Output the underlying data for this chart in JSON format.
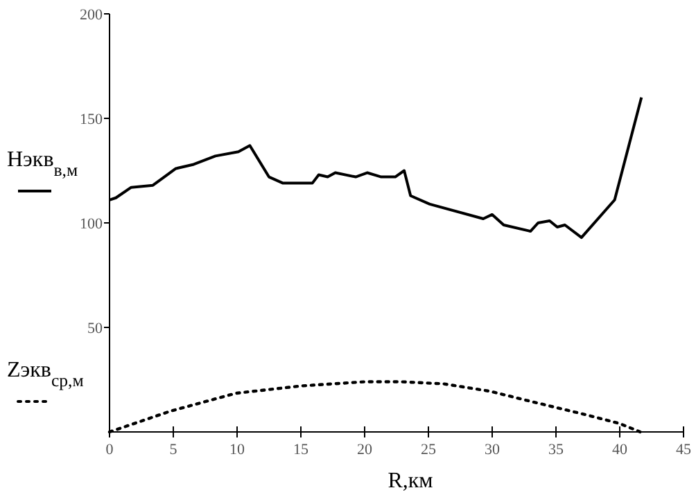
{
  "chart_data": {
    "type": "line",
    "xlabel": "R,км",
    "legend": "left",
    "grid": false,
    "xlim": [
      0,
      45
    ],
    "xticks": [
      0,
      5,
      10,
      15,
      20,
      25,
      30,
      35,
      40,
      45
    ],
    "ylim": [
      0,
      200
    ],
    "yticks": [
      50,
      100,
      150,
      200
    ],
    "series": [
      {
        "name": "Нэкв$_{в,м}$",
        "color": "#000000",
        "line_style": "solid",
        "x": [
          0,
          0.5,
          1.7,
          3.4,
          5.2,
          6.6,
          8.3,
          10.1,
          11.0,
          12.5,
          13.6,
          15.9,
          16.4,
          17.1,
          17.7,
          19.3,
          20.2,
          21.3,
          22.4,
          23.1,
          23.6,
          25.1,
          29.3,
          30.0,
          30.9,
          33.0,
          33.6,
          34.5,
          35.1,
          35.7,
          37.0,
          39.6,
          41.7
        ],
        "values": [
          111,
          112,
          117,
          118,
          126,
          128,
          132,
          134,
          137,
          122,
          119,
          119,
          123,
          122,
          124,
          122,
          124,
          122,
          122,
          125,
          113,
          109,
          102,
          104,
          99,
          96,
          100,
          101,
          98,
          99,
          93,
          111,
          160
        ]
      },
      {
        "name": "Zэкв$_{ср,м}$",
        "color": "#000000",
        "line_style": "dotted",
        "x": [
          0,
          4.8,
          9.9,
          15,
          20,
          22.9,
          26.2,
          29.8,
          33.1,
          37.5,
          40,
          41.6
        ],
        "values": [
          0,
          10,
          18.5,
          22,
          24,
          24,
          23,
          19.5,
          14.5,
          8,
          4,
          0
        ]
      }
    ]
  }
}
